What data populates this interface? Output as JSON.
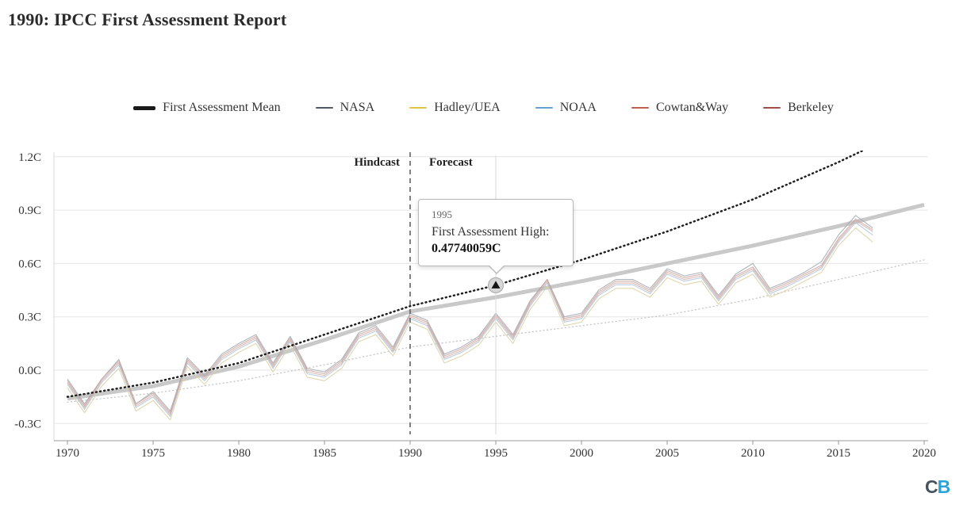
{
  "header": {
    "title": "1990: IPCC First Assessment Report"
  },
  "legend": {
    "items": [
      {
        "id": "first-assessment-mean",
        "label": "First Assessment Mean",
        "color": "#1a1a1a",
        "swatch": "thick"
      },
      {
        "id": "nasa",
        "label": "NASA",
        "color": "#4d5a66",
        "swatch": "line"
      },
      {
        "id": "hadley-uea",
        "label": "Hadley/UEA",
        "color": "#e3c44a",
        "swatch": "line"
      },
      {
        "id": "noaa",
        "label": "NOAA",
        "color": "#699fd0",
        "swatch": "line"
      },
      {
        "id": "cowtan-way",
        "label": "Cowtan&Way",
        "color": "#c05e52",
        "swatch": "line"
      },
      {
        "id": "berkeley",
        "label": "Berkeley",
        "color": "#9e4f47",
        "swatch": "line"
      }
    ]
  },
  "chart": {
    "hindcast_label": "Hindcast",
    "forecast_label": "Forecast"
  },
  "tooltip": {
    "year": "1995",
    "label": "First Assessment High:",
    "value": "0.47740059C"
  },
  "logo": {
    "c": "C",
    "b": "B"
  },
  "chart_data": {
    "type": "line",
    "title": "1990: IPCC First Assessment Report",
    "xlim": [
      1970,
      2020
    ],
    "ylim": [
      -0.3,
      1.2
    ],
    "x_ticks": [
      1970,
      1975,
      1980,
      1985,
      1990,
      1995,
      2000,
      2005,
      2010,
      2015,
      2020
    ],
    "y_ticks": [
      {
        "value": 1.2,
        "label": "1.2C"
      },
      {
        "value": 0.9,
        "label": "0.9C"
      },
      {
        "value": 0.6,
        "label": "0.6C"
      },
      {
        "value": 0.3,
        "label": "0.3C"
      },
      {
        "value": 0.0,
        "label": "0.0C"
      },
      {
        "value": -0.3,
        "label": "-0.3C"
      }
    ],
    "grid": true,
    "legend_position": "top",
    "hindcast_boundary_year": 1990,
    "crosshair_year": 1995,
    "highlight": {
      "year": 1995,
      "series": "First Assessment High",
      "value": 0.47740059
    },
    "forecast": {
      "years": [
        1970,
        1975,
        1980,
        1985,
        1990,
        1995,
        2000,
        2005,
        2010,
        2015,
        2020
      ],
      "series": [
        {
          "name": "First Assessment High",
          "style": "dotted-dark",
          "color": "#1f1f1f",
          "values": [
            -0.15,
            -0.07,
            0.04,
            0.2,
            0.36,
            0.47740059,
            0.62,
            0.78,
            0.96,
            1.17,
            1.4
          ]
        },
        {
          "name": "First Assessment Mean",
          "style": "thick",
          "color": "#c9c9c9",
          "values": [
            -0.16,
            -0.09,
            0.02,
            0.17,
            0.33,
            0.41,
            0.5,
            0.6,
            0.7,
            0.81,
            0.93
          ]
        },
        {
          "name": "First Assessment Low",
          "style": "dotted-light",
          "color": "#c4c4c4",
          "values": [
            -0.18,
            -0.13,
            -0.06,
            0.03,
            0.13,
            0.19,
            0.25,
            0.31,
            0.4,
            0.51,
            0.62
          ]
        }
      ]
    },
    "observation_years": [
      1970,
      1971,
      1972,
      1973,
      1974,
      1975,
      1976,
      1977,
      1978,
      1979,
      1980,
      1981,
      1982,
      1983,
      1984,
      1985,
      1986,
      1987,
      1988,
      1989,
      1990,
      1991,
      1992,
      1993,
      1994,
      1995,
      1996,
      1997,
      1998,
      1999,
      2000,
      2001,
      2002,
      2003,
      2004,
      2005,
      2006,
      2007,
      2008,
      2009,
      2010,
      2011,
      2012,
      2013,
      2014,
      2015,
      2016,
      2017
    ],
    "observations": [
      {
        "name": "NASA",
        "color": "#9fa8b0",
        "values": [
          -0.05,
          -0.19,
          -0.05,
          0.06,
          -0.19,
          -0.12,
          -0.23,
          0.07,
          -0.03,
          0.09,
          0.15,
          0.2,
          0.04,
          0.19,
          0.01,
          -0.01,
          0.06,
          0.21,
          0.25,
          0.13,
          0.32,
          0.28,
          0.09,
          0.13,
          0.19,
          0.32,
          0.2,
          0.39,
          0.51,
          0.3,
          0.32,
          0.45,
          0.51,
          0.51,
          0.46,
          0.57,
          0.53,
          0.55,
          0.42,
          0.54,
          0.6,
          0.46,
          0.5,
          0.55,
          0.61,
          0.76,
          0.87,
          0.8
        ]
      },
      {
        "name": "Hadley/UEA",
        "color": "#dbd0a0",
        "values": [
          -0.1,
          -0.24,
          -0.09,
          0.01,
          -0.23,
          -0.17,
          -0.28,
          0.02,
          -0.08,
          0.04,
          0.1,
          0.15,
          -0.01,
          0.14,
          -0.04,
          -0.06,
          0.01,
          0.16,
          0.2,
          0.08,
          0.27,
          0.23,
          0.04,
          0.08,
          0.14,
          0.27,
          0.15,
          0.34,
          0.47,
          0.25,
          0.27,
          0.4,
          0.46,
          0.46,
          0.41,
          0.52,
          0.48,
          0.5,
          0.37,
          0.49,
          0.54,
          0.41,
          0.45,
          0.5,
          0.55,
          0.7,
          0.8,
          0.72
        ]
      },
      {
        "name": "NOAA",
        "color": "#a9c6dc",
        "values": [
          -0.08,
          -0.22,
          -0.07,
          0.03,
          -0.21,
          -0.15,
          -0.26,
          0.04,
          -0.06,
          0.06,
          0.12,
          0.17,
          0.01,
          0.16,
          -0.02,
          -0.04,
          0.03,
          0.18,
          0.22,
          0.1,
          0.29,
          0.25,
          0.06,
          0.1,
          0.16,
          0.29,
          0.17,
          0.36,
          0.49,
          0.27,
          0.29,
          0.42,
          0.48,
          0.48,
          0.43,
          0.54,
          0.5,
          0.52,
          0.39,
          0.51,
          0.56,
          0.43,
          0.47,
          0.52,
          0.57,
          0.72,
          0.83,
          0.76
        ]
      },
      {
        "name": "Cowtan&Way",
        "color": "#d6aba4",
        "values": [
          -0.07,
          -0.21,
          -0.06,
          0.04,
          -0.2,
          -0.14,
          -0.25,
          0.05,
          -0.05,
          0.07,
          0.13,
          0.18,
          0.02,
          0.17,
          -0.01,
          -0.03,
          0.04,
          0.19,
          0.23,
          0.11,
          0.3,
          0.26,
          0.07,
          0.11,
          0.17,
          0.3,
          0.18,
          0.37,
          0.5,
          0.28,
          0.3,
          0.43,
          0.49,
          0.49,
          0.44,
          0.55,
          0.51,
          0.53,
          0.4,
          0.52,
          0.57,
          0.44,
          0.48,
          0.53,
          0.58,
          0.73,
          0.84,
          0.78
        ]
      },
      {
        "name": "Berkeley",
        "color": "#c9a39e",
        "values": [
          -0.06,
          -0.2,
          -0.05,
          0.05,
          -0.19,
          -0.13,
          -0.24,
          0.06,
          -0.04,
          0.08,
          0.14,
          0.19,
          0.03,
          0.18,
          0.0,
          -0.02,
          0.05,
          0.2,
          0.24,
          0.12,
          0.31,
          0.27,
          0.08,
          0.12,
          0.18,
          0.31,
          0.19,
          0.38,
          0.51,
          0.29,
          0.31,
          0.44,
          0.5,
          0.5,
          0.45,
          0.56,
          0.52,
          0.54,
          0.41,
          0.53,
          0.58,
          0.45,
          0.49,
          0.54,
          0.59,
          0.74,
          0.85,
          0.79
        ]
      }
    ]
  }
}
